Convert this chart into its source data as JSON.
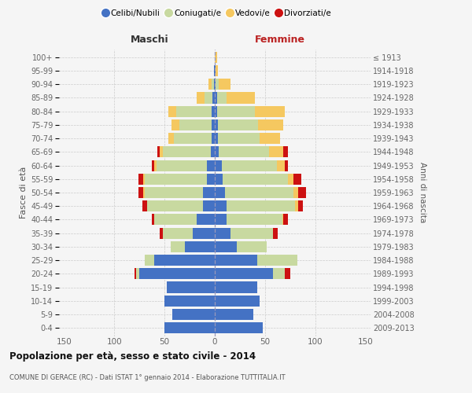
{
  "age_groups_bottom_to_top": [
    "0-4",
    "5-9",
    "10-14",
    "15-19",
    "20-24",
    "25-29",
    "30-34",
    "35-39",
    "40-44",
    "45-49",
    "50-54",
    "55-59",
    "60-64",
    "65-69",
    "70-74",
    "75-79",
    "80-84",
    "85-89",
    "90-94",
    "95-99",
    "100+"
  ],
  "birth_years_bottom_to_top": [
    "2009-2013",
    "2004-2008",
    "1999-2003",
    "1994-1998",
    "1989-1993",
    "1984-1988",
    "1979-1983",
    "1974-1978",
    "1969-1973",
    "1964-1968",
    "1959-1963",
    "1954-1958",
    "1949-1953",
    "1944-1948",
    "1939-1943",
    "1934-1938",
    "1929-1933",
    "1924-1928",
    "1919-1923",
    "1914-1918",
    "≤ 1913"
  ],
  "colors": {
    "celibi": "#4472c4",
    "coniugati": "#c8d9a0",
    "vedovi": "#f5c860",
    "divorziati": "#cc1111"
  },
  "maschi": {
    "celibi": [
      50,
      42,
      50,
      48,
      75,
      60,
      30,
      22,
      18,
      12,
      12,
      8,
      8,
      4,
      3,
      3,
      3,
      2,
      1,
      1,
      0
    ],
    "coniugati": [
      0,
      0,
      0,
      0,
      3,
      10,
      14,
      30,
      42,
      55,
      58,
      62,
      50,
      48,
      38,
      32,
      35,
      8,
      2,
      0,
      0
    ],
    "vedovi": [
      0,
      0,
      0,
      0,
      0,
      0,
      0,
      0,
      0,
      0,
      1,
      1,
      2,
      3,
      5,
      8,
      8,
      8,
      3,
      0,
      0
    ],
    "divorziati": [
      0,
      0,
      0,
      0,
      2,
      0,
      0,
      3,
      3,
      5,
      5,
      5,
      3,
      2,
      0,
      0,
      0,
      0,
      0,
      0,
      0
    ]
  },
  "femmine": {
    "celibi": [
      48,
      38,
      45,
      42,
      58,
      42,
      22,
      16,
      12,
      12,
      10,
      8,
      7,
      4,
      3,
      3,
      2,
      2,
      1,
      1,
      0
    ],
    "coniugati": [
      0,
      0,
      0,
      0,
      12,
      40,
      30,
      42,
      55,
      68,
      68,
      65,
      55,
      50,
      42,
      40,
      38,
      10,
      3,
      0,
      0
    ],
    "vedovi": [
      0,
      0,
      0,
      0,
      0,
      0,
      0,
      0,
      1,
      3,
      5,
      5,
      8,
      14,
      20,
      25,
      30,
      28,
      12,
      2,
      2
    ],
    "divorziati": [
      0,
      0,
      0,
      0,
      5,
      0,
      0,
      5,
      5,
      5,
      8,
      8,
      3,
      5,
      0,
      0,
      0,
      0,
      0,
      0,
      0
    ]
  },
  "title": "Popolazione per età, sesso e stato civile - 2014",
  "subtitle": "COMUNE DI GERACE (RC) - Dati ISTAT 1° gennaio 2014 - Elaborazione TUTTITALIA.IT",
  "label_maschi": "Maschi",
  "label_femmine": "Femmine",
  "ylabel_left": "Fasce di età",
  "ylabel_right": "Anni di nascita",
  "xlim": 155,
  "legend_labels": [
    "Celibi/Nubili",
    "Coniugati/e",
    "Vedovi/e",
    "Divorziati/e"
  ],
  "bg_color": "#f5f5f5",
  "plot_bg": "#f5f5f5",
  "grid_color": "#cccccc"
}
